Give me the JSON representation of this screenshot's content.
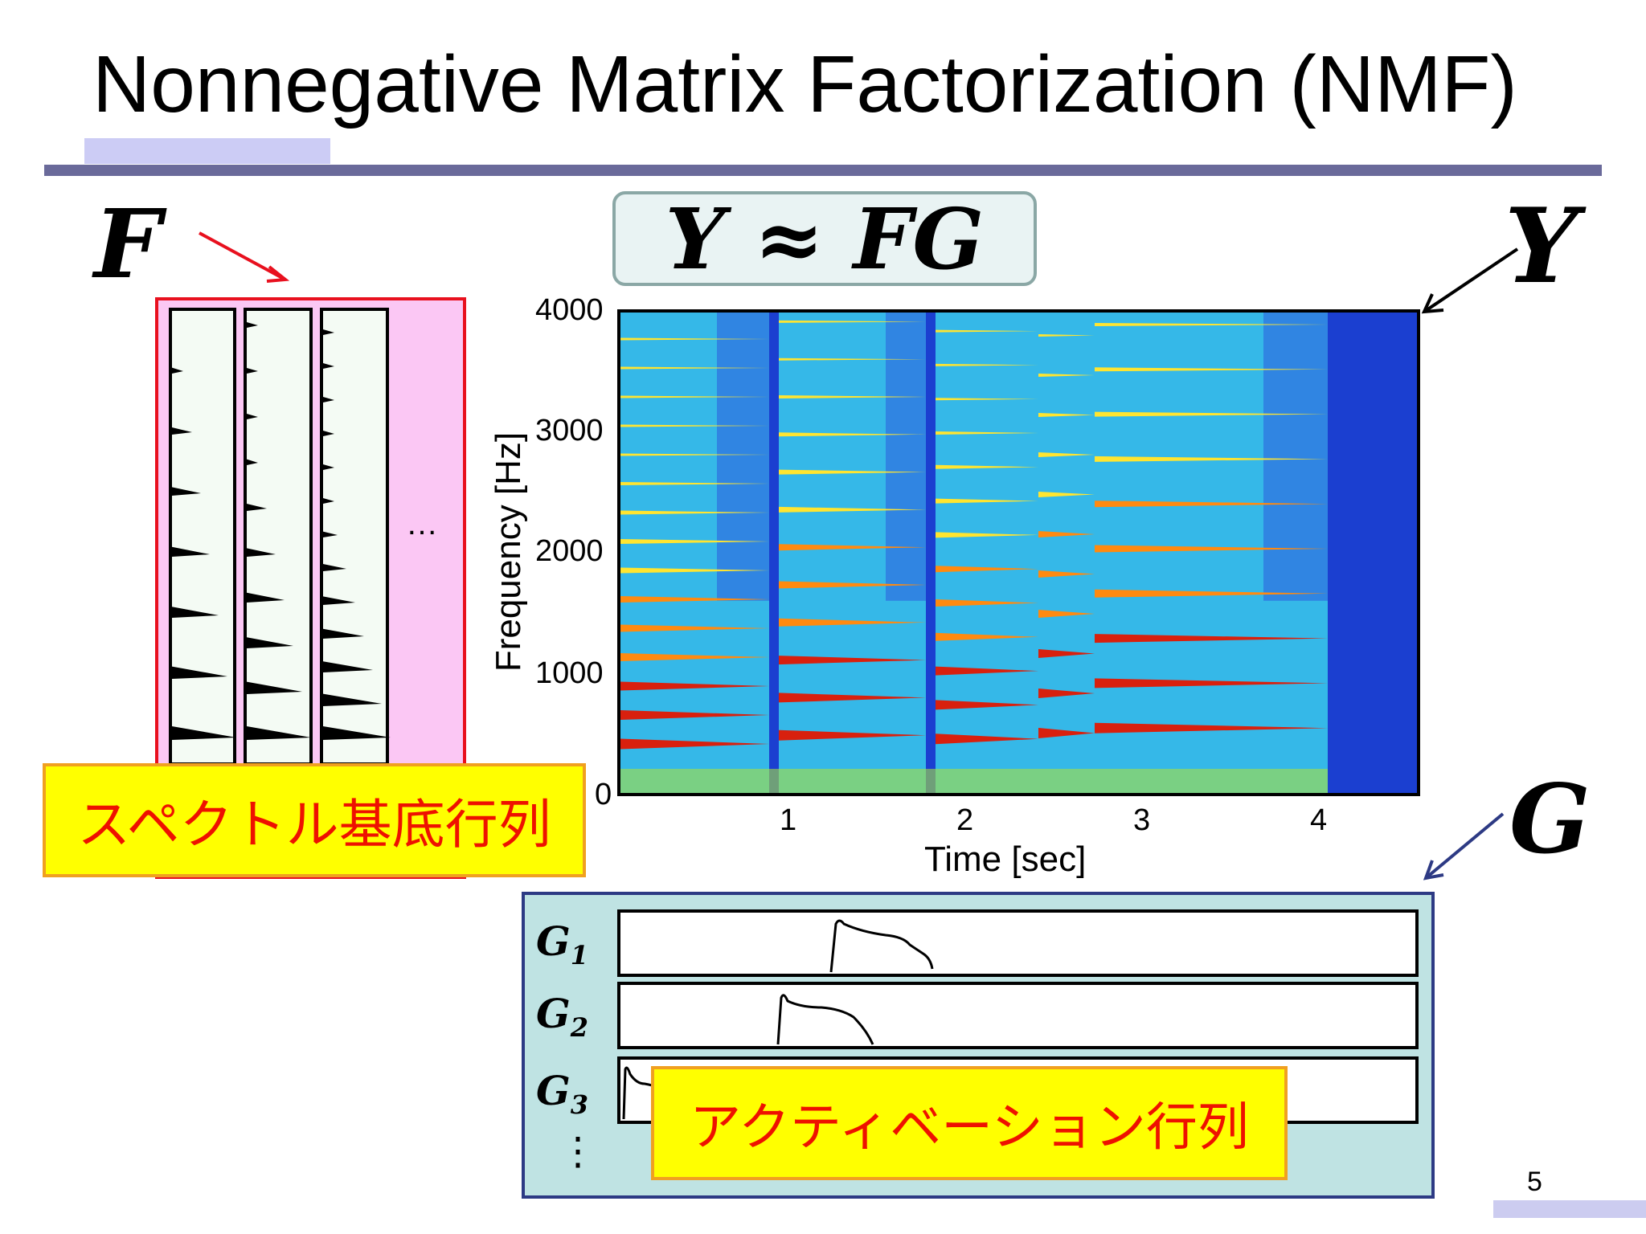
{
  "slide": {
    "title": "Nonnegative Matrix Factorization (NMF)",
    "page_number": "5",
    "accent_color": "#8888bb"
  },
  "equation": {
    "text": "Y ≈ FG"
  },
  "labels": {
    "F": "F",
    "Y": "Y",
    "G": "G",
    "spectral_basis": "スペクトル基底行列",
    "activation": "アクティベーション行列",
    "f_ellipsis": "…",
    "g_ellipsis": "⋮"
  },
  "g_rows": [
    {
      "name": "G",
      "sub": "1"
    },
    {
      "name": "G",
      "sub": "2"
    },
    {
      "name": "G",
      "sub": "3"
    }
  ],
  "chart_data": {
    "type": "heatmap",
    "xlabel": "Time [sec]",
    "ylabel": "Frequency [Hz]",
    "xlim": [
      0,
      4.5
    ],
    "ylim": [
      0,
      4000
    ],
    "xticks": [
      "1",
      "2",
      "3",
      "4"
    ],
    "yticks": [
      "0",
      "1000",
      "2000",
      "3000",
      "4000"
    ],
    "colormap": "jet",
    "grid": false
  }
}
